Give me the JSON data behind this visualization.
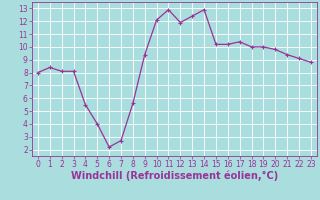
{
  "x": [
    0,
    1,
    2,
    3,
    4,
    5,
    6,
    7,
    8,
    9,
    10,
    11,
    12,
    13,
    14,
    15,
    16,
    17,
    18,
    19,
    20,
    21,
    22,
    23
  ],
  "y": [
    8.0,
    8.4,
    8.1,
    8.1,
    5.5,
    4.0,
    2.2,
    2.7,
    5.6,
    9.4,
    12.1,
    12.9,
    11.9,
    12.4,
    12.9,
    10.2,
    10.2,
    10.4,
    10.0,
    10.0,
    9.8,
    9.4,
    9.1,
    8.8
  ],
  "line_color": "#993399",
  "marker": "+",
  "marker_size": 3.5,
  "marker_lw": 0.8,
  "bg_color": "#aadddd",
  "grid_color": "#ffffff",
  "xlabel": "Windchill (Refroidissement éolien,°C)",
  "ylim_min": 1.5,
  "ylim_max": 13.5,
  "xlim_min": -0.5,
  "xlim_max": 23.5,
  "yticks": [
    2,
    3,
    4,
    5,
    6,
    7,
    8,
    9,
    10,
    11,
    12,
    13
  ],
  "xticks": [
    0,
    1,
    2,
    3,
    4,
    5,
    6,
    7,
    8,
    9,
    10,
    11,
    12,
    13,
    14,
    15,
    16,
    17,
    18,
    19,
    20,
    21,
    22,
    23
  ],
  "tick_color": "#993399",
  "label_color": "#993399",
  "tick_fontsize": 5.5,
  "xlabel_fontsize": 7.0,
  "line_width": 0.9
}
